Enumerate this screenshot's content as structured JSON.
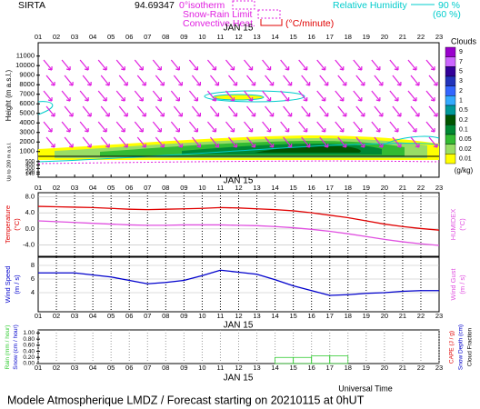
{
  "header": {
    "station": "SIRTA",
    "station_code": "94.69347"
  },
  "legend": {
    "isotherm": "0°isotherm",
    "snow_rain": "Snow-Rain Limit",
    "convective": "Convective Heat.",
    "convective_unit": "(°C/minute)",
    "humidity": "Relative Humidity",
    "humidity_high": "90 %",
    "humidity_low": "(60 %)"
  },
  "hours": [
    "01",
    "02",
    "03",
    "04",
    "05",
    "06",
    "07",
    "08",
    "09",
    "10",
    "11",
    "12",
    "13",
    "14",
    "15",
    "16",
    "17",
    "18",
    "19",
    "20",
    "21",
    "22",
    "23"
  ],
  "date_label": "JAN 15",
  "x_axis_label": "Universal Time",
  "footer": "Modele Atmospherique LMDZ / Forecast starting on 20210115 at 0hUT",
  "chart_data": [
    {
      "type": "contour",
      "ylabel": "Height (m a.s.l.)",
      "ylim": [
        500,
        12400
      ],
      "yticks": [
        11000,
        10000,
        9000,
        8000,
        7000,
        6000,
        5000,
        4000,
        3000,
        2000,
        1000
      ],
      "lower_ylabel": "Up to 200 m a.s.l.",
      "lower_ylim": [
        50,
        650
      ],
      "lower_yticks": [
        500,
        400,
        300,
        200,
        140
      ],
      "colorbar": {
        "title": "Clouds",
        "unit": "(g/kg)",
        "levels": [
          9,
          7,
          5,
          3,
          2,
          1,
          0.5,
          0.2,
          0.1,
          0.05,
          0.02,
          0.01
        ],
        "colors": [
          "#9900cc",
          "#cc66ff",
          "#330099",
          "#2233bb",
          "#3366ff",
          "#33aaff",
          "#009999",
          "#005500",
          "#008833",
          "#33bb33",
          "#99dd66",
          "#ffff00"
        ]
      }
    },
    {
      "type": "line",
      "ylim": [
        -6.8,
        9
      ],
      "yticks": [
        {
          "value": 8,
          "label": "8.0"
        },
        {
          "value": 4,
          "label": "4.0"
        },
        {
          "value": 0,
          "label": "0.0"
        },
        {
          "value": -4,
          "label": "-4.0"
        }
      ],
      "yunit": "(°C)",
      "series": [
        {
          "name": "Temperature",
          "color": "#e00000",
          "values": [
            5.6,
            5.5,
            5.4,
            5.3,
            5.1,
            4.9,
            4.8,
            4.9,
            5.0,
            5.1,
            5.3,
            5.2,
            5.0,
            4.8,
            4.5,
            4.0,
            3.4,
            2.8,
            2.0,
            1.2,
            0.6,
            0.1,
            -0.3
          ]
        },
        {
          "name": "HUMIDEX",
          "color": "#e050e0",
          "axis": "y2",
          "values": [
            2.0,
            1.8,
            1.6,
            1.4,
            1.2,
            1.0,
            0.9,
            0.9,
            1.0,
            1.0,
            1.0,
            0.9,
            0.8,
            0.6,
            0.3,
            -0.1,
            -0.6,
            -1.2,
            -1.9,
            -2.6,
            -3.2,
            -3.7,
            -4.1
          ]
        }
      ]
    },
    {
      "type": "line",
      "ylim": [
        1.2,
        9.2
      ],
      "yticks": [
        8,
        6,
        4
      ],
      "yunit": "(m / s)",
      "y2label": "Wind Gust",
      "y2unit": "(m / s)",
      "series": [
        {
          "name": "Wind Speed",
          "color": "#0000cc",
          "values": [
            6.9,
            6.9,
            6.9,
            6.6,
            6.3,
            5.8,
            5.3,
            5.5,
            5.8,
            6.5,
            7.3,
            7.0,
            6.7,
            5.9,
            5.0,
            4.3,
            3.6,
            3.7,
            3.9,
            4.0,
            4.2,
            4.3,
            4.3
          ]
        }
      ]
    },
    {
      "type": "histogram",
      "ylim": [
        0,
        1.1
      ],
      "yticks": [
        {
          "value": 1,
          "label": "1.00"
        },
        {
          "value": 0.8,
          "label": "0.80"
        },
        {
          "value": 0.6,
          "label": "0.60"
        },
        {
          "value": 0.4,
          "label": "0.40"
        },
        {
          "value": 0.2,
          "label": "0.20"
        },
        {
          "value": 0,
          "label": "0.00"
        }
      ],
      "bins": [
        1,
        2,
        3,
        4,
        5,
        6,
        7,
        8,
        9,
        10,
        11,
        12,
        13,
        14,
        15,
        16,
        17,
        18,
        19,
        20,
        21,
        22,
        23
      ],
      "series": [
        {
          "name": "Rain",
          "unit": "(mm / hour)",
          "color": "#33cc33",
          "values": [
            0,
            0,
            0,
            0,
            0,
            0,
            0,
            0,
            0,
            0,
            0,
            0,
            0,
            0.2,
            0.2,
            0.25,
            0.25,
            0,
            0,
            0,
            0,
            0
          ]
        },
        {
          "name": "Snow",
          "unit": "(cm / hour)",
          "color": "#0000cc",
          "values": [
            0,
            0,
            0,
            0,
            0,
            0,
            0,
            0,
            0,
            0,
            0,
            0,
            0,
            0,
            0,
            0,
            0,
            0,
            0,
            0,
            0,
            0
          ]
        }
      ],
      "right_labels": [
        {
          "text": "CAPE (J / g)",
          "color": "#e00000"
        },
        {
          "text": "Snow Depth (cm)",
          "color": "#0000cc"
        },
        {
          "text": "Cloud Fraction",
          "color": "#000000"
        }
      ]
    }
  ]
}
